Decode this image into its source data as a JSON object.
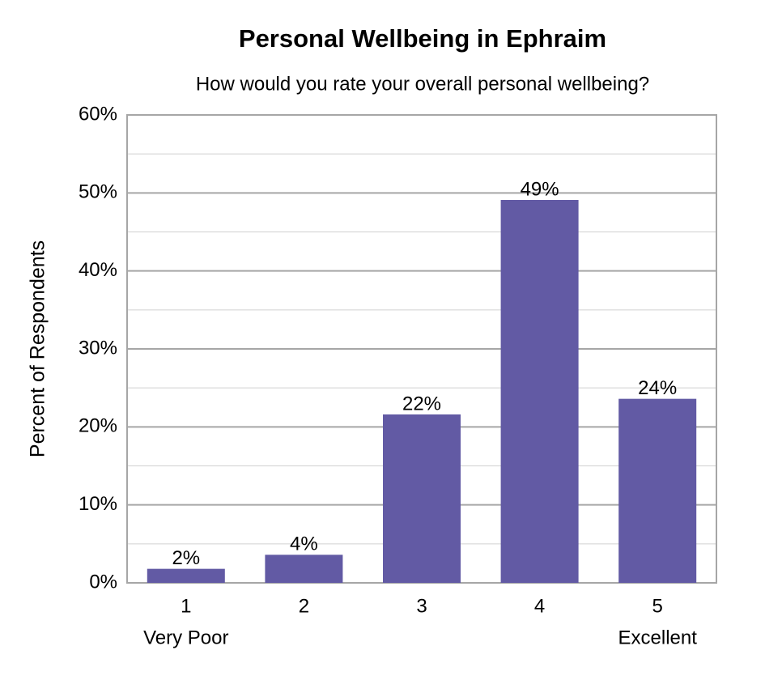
{
  "chart_data": {
    "type": "bar",
    "title": "Personal Wellbeing in Ephraim",
    "subtitle": "How would you rate your overall personal wellbeing?",
    "y_label": "Percent of Respondents",
    "categories": [
      "1",
      "2",
      "3",
      "4",
      "5"
    ],
    "category_sublabels": [
      "Very Poor",
      null,
      null,
      null,
      "Excellent"
    ],
    "values": [
      1.8,
      3.6,
      21.6,
      49.1,
      23.6
    ],
    "value_labels": [
      "2%",
      "4%",
      "22%",
      "49%",
      "24%"
    ],
    "color": "#625aa4",
    "ylim": [
      0,
      60
    ],
    "yticks": [
      {
        "value": 0,
        "label": "0%"
      },
      {
        "value": 10,
        "label": "10%"
      },
      {
        "value": 20,
        "label": "20%"
      },
      {
        "value": 30,
        "label": "30%"
      },
      {
        "value": 40,
        "label": "40%"
      },
      {
        "value": 50,
        "label": "50%"
      },
      {
        "value": 60,
        "label": "60%"
      }
    ],
    "minor_gridlines": [
      5,
      15,
      25,
      35,
      45,
      55
    ],
    "grid": true
  }
}
